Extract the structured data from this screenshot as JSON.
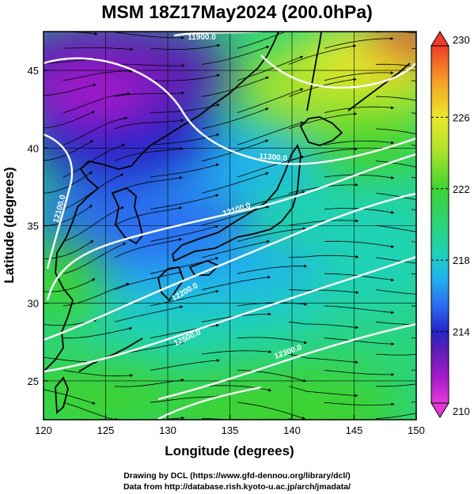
{
  "title": "MSM 18Z17May2024 (200.0hPa)",
  "x_axis": {
    "label": "Longitude (degrees)",
    "range": [
      120,
      150
    ],
    "ticks": [
      120,
      125,
      130,
      135,
      140,
      145,
      150
    ]
  },
  "y_axis": {
    "label": "Latitude  (degrees)",
    "range": [
      22.5,
      47.5
    ],
    "ticks": [
      25,
      30,
      35,
      40,
      45
    ]
  },
  "colorbar": {
    "range": [
      210,
      230
    ],
    "ticks": [
      210,
      214,
      218,
      222,
      226,
      230
    ],
    "stops": [
      {
        "v": 210,
        "c": "#e23ad8"
      },
      {
        "v": 211.5,
        "c": "#a419c9"
      },
      {
        "v": 213,
        "c": "#5a1fb4"
      },
      {
        "v": 214,
        "c": "#2424c8"
      },
      {
        "v": 215.5,
        "c": "#2c6cf0"
      },
      {
        "v": 217,
        "c": "#1fb4f0"
      },
      {
        "v": 218.5,
        "c": "#1fd2b4"
      },
      {
        "v": 220,
        "c": "#2ad47a"
      },
      {
        "v": 222,
        "c": "#3ed232"
      },
      {
        "v": 224,
        "c": "#a6e22a"
      },
      {
        "v": 226,
        "c": "#ece82a"
      },
      {
        "v": 228,
        "c": "#f4a028"
      },
      {
        "v": 230,
        "c": "#f03c28"
      }
    ]
  },
  "contour_labels": [
    "11900.0",
    "12100.0",
    "11300.0",
    "12100.0",
    "12200.0",
    "12500.0",
    "12300.0"
  ],
  "credits": [
    "Drawing by DCL (https://www.gfd-dennou.org/library/dcl/)",
    "Data from http://database.rish.kyoto-u.ac.jp/arch/jmadata/"
  ]
}
